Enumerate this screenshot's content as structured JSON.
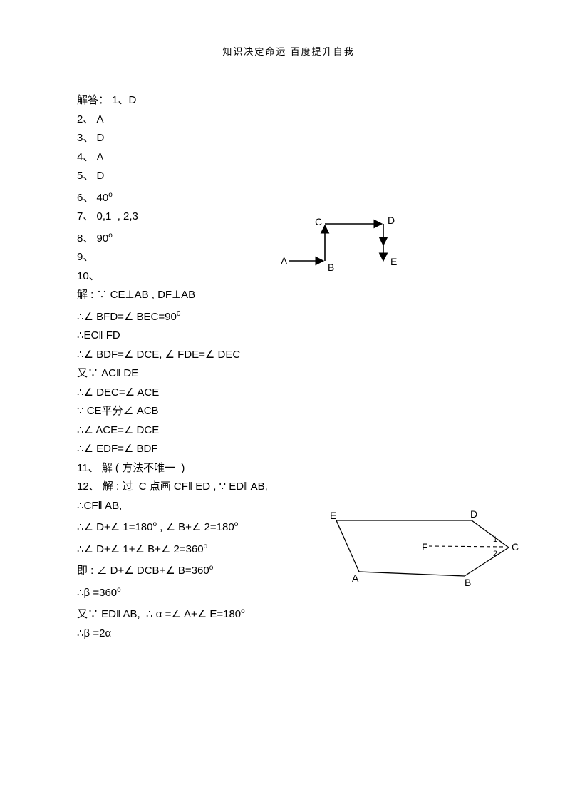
{
  "header": "知识决定命运   百度提升自我",
  "lines": [
    {
      "t": "解答： 1、D"
    },
    {
      "t": "2、 A"
    },
    {
      "t": "3、 D"
    },
    {
      "t": "4、 A"
    },
    {
      "t": "5、 D"
    },
    {
      "t": "6、 40",
      "sup": "o"
    },
    {
      "t": "7、 0,1  , 2,3"
    },
    {
      "t": "8、 90",
      "sup": "o"
    },
    {
      "t": "9、"
    },
    {
      "t": "10、"
    },
    {
      "t": "解 : ∵ CE⊥AB , DF⊥AB"
    },
    {
      "t": "∴∠ BFD=∠ BEC=90",
      "sup": "0"
    },
    {
      "t": "∴EC‖ FD"
    },
    {
      "t": "∴∠ BDF=∠ DCE, ∠ FDE=∠ DEC"
    },
    {
      "t": "又∵ AC‖ DE"
    },
    {
      "t": "∴∠ DEC=∠ ACE"
    },
    {
      "t": "∵ CE平分∠ ACB"
    },
    {
      "t": "∴∠ ACE=∠ DCE"
    },
    {
      "t": "∴∠ EDF=∠ BDF"
    },
    {
      "t": "11、 解 ( 方法不唯一  )"
    },
    {
      "t": "12、 解 : 过  C 点画 CF‖ ED , ∵ ED‖ AB,"
    },
    {
      "t": "∴CF‖ AB,"
    },
    {
      "t": "∴∠ D+∠ 1=180",
      "sup": "o",
      "tail": " , ∠ B+∠ 2=180",
      "sup2": "o"
    },
    {
      "t": "∴∠ D+∠ 1+∠ B+∠ 2=360",
      "sup": "o"
    },
    {
      "t": "即 : ∠ D+∠ DCB+∠ B=360",
      "sup": "o"
    },
    {
      "t": "∴β =360",
      "sup": "o"
    },
    {
      "t": "又∵ ED‖ AB,  ∴ α =∠ A+∠ E=180",
      "sup": "o"
    },
    {
      "t": "∴β =2α"
    }
  ],
  "fig1": {
    "A": "A",
    "B": "B",
    "C": "C",
    "D": "D",
    "E": "E",
    "stroke": "#000000",
    "fill": "#000000"
  },
  "fig2": {
    "A": "A",
    "B": "B",
    "C": "C",
    "D": "D",
    "E": "E",
    "F": "F",
    "n1": "1",
    "n2": "2",
    "stroke": "#000000"
  }
}
